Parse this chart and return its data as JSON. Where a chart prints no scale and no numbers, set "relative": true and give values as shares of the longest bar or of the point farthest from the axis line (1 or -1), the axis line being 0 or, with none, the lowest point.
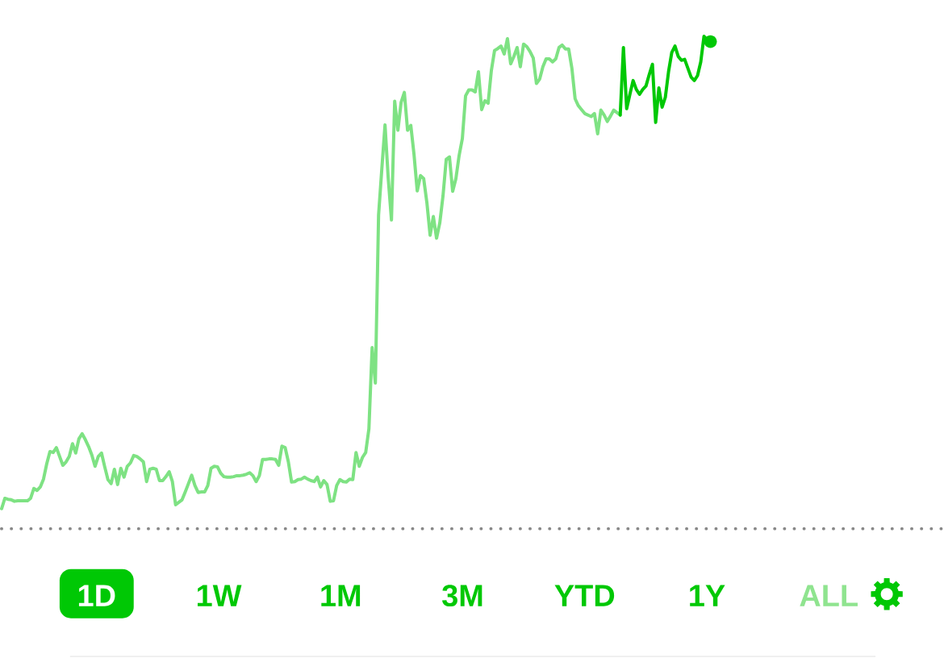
{
  "chart_data": {
    "type": "line",
    "relative": true,
    "categories": [
      null,
      null,
      null,
      null,
      null,
      null,
      null,
      null,
      null,
      null,
      null,
      null,
      null,
      null,
      null,
      null,
      null,
      null,
      null,
      null,
      null,
      null,
      null,
      null,
      null,
      null,
      null,
      null,
      null,
      null,
      null,
      null,
      null,
      null,
      null,
      null,
      null,
      null,
      null,
      null,
      null,
      null,
      null,
      null,
      null,
      null,
      null,
      null,
      null,
      null,
      null,
      null,
      null,
      null,
      null,
      null,
      null,
      null,
      null,
      null,
      null,
      null,
      null,
      null,
      null,
      null,
      null,
      null,
      null,
      null,
      null,
      null,
      null,
      null,
      null,
      null,
      null,
      null,
      null,
      null,
      null,
      null,
      null,
      null,
      null,
      null,
      null,
      null,
      null,
      null,
      null,
      null,
      null,
      null,
      null,
      null,
      null,
      null,
      null,
      null,
      null,
      null,
      null,
      null,
      null,
      null,
      null,
      null,
      null,
      null,
      null,
      null,
      null,
      null,
      null,
      null,
      null,
      null,
      null,
      null,
      null,
      null,
      null,
      null,
      null,
      null,
      null,
      null,
      null,
      null,
      null,
      null,
      null,
      null,
      null,
      null,
      null,
      null,
      null,
      null,
      null,
      null,
      null,
      null,
      null,
      null,
      null,
      null,
      null,
      null,
      null,
      null,
      null,
      null,
      null,
      null,
      null,
      null,
      null,
      null,
      null,
      null,
      null,
      null,
      null,
      null,
      null,
      null,
      null,
      null,
      null,
      null,
      null,
      null,
      null,
      null,
      null,
      null,
      null,
      null,
      null,
      null,
      null,
      null,
      null,
      null,
      null,
      null,
      null,
      null,
      null,
      null,
      null,
      null,
      null,
      null,
      null,
      null,
      null,
      null,
      null,
      null,
      null,
      null,
      null,
      null,
      null,
      null,
      null,
      null,
      null,
      null,
      null,
      null,
      null,
      null,
      null,
      null,
      null,
      null,
      null
    ],
    "series": [
      {
        "color": "#7ee283",
        "values": [
          0.041,
          0.062,
          0.06,
          0.059,
          0.056,
          0.057,
          0.057,
          0.057,
          0.057,
          0.062,
          0.082,
          0.078,
          0.085,
          0.101,
          0.132,
          0.157,
          0.155,
          0.165,
          0.147,
          0.129,
          0.136,
          0.147,
          0.173,
          0.154,
          0.183,
          0.193,
          0.181,
          0.167,
          0.15,
          0.127,
          0.147,
          0.154,
          0.126,
          0.1,
          0.092,
          0.121,
          0.09,
          0.123,
          0.105,
          0.127,
          0.134,
          0.149,
          0.147,
          0.142,
          0.136,
          0.096,
          0.121,
          0.123,
          0.121,
          0.098,
          0.098,
          0.106,
          0.116,
          0.096,
          0.049,
          0.054,
          0.059,
          0.075,
          0.092,
          0.109,
          0.088,
          0.074,
          0.075,
          0.075,
          0.088,
          0.123,
          0.127,
          0.126,
          0.113,
          0.106,
          0.105,
          0.105,
          0.106,
          0.108,
          0.108,
          0.109,
          0.111,
          0.114,
          0.108,
          0.096,
          0.108,
          0.141,
          0.141,
          0.142,
          0.142,
          0.141,
          0.129,
          0.168,
          0.165,
          0.136,
          0.095,
          0.096,
          0.1,
          0.101,
          0.105,
          0.101,
          0.098,
          0.096,
          0.105,
          0.085,
          0.098,
          0.09,
          0.056,
          0.057,
          0.088,
          0.1,
          0.096,
          0.095,
          0.101,
          0.1,
          0.155,
          0.127,
          0.145,
          0.155,
          0.203,
          0.368,
          0.296,
          0.637,
          0.73,
          0.82,
          0.711,
          0.627,
          0.868,
          0.809,
          0.866,
          0.886,
          0.809,
          0.819,
          0.76,
          0.686,
          0.717,
          0.711,
          0.662,
          0.596,
          0.634,
          0.59,
          0.621,
          0.676,
          0.75,
          0.755,
          0.685,
          0.711,
          0.758,
          0.792,
          0.879,
          0.891,
          0.891,
          0.887,
          0.928,
          0.851,
          0.869,
          0.864,
          0.93,
          0.971,
          0.975,
          0.98,
          0.964,
          0.995,
          0.944,
          0.959,
          0.977,
          0.938,
          0.984,
          0.979,
          0.969,
          0.956,
          0.904,
          0.913,
          0.938,
          0.954,
          0.954,
          0.948,
          0.954,
          0.977,
          0.982,
          0.974,
          0.974,
          0.935,
          0.873,
          0.859,
          0.851,
          0.843,
          0.84,
          0.837,
          0.843,
          0.802,
          0.85,
          0.84,
          0.827,
          0.838,
          0.85,
          0.845,
          0.84,
          null,
          null,
          null,
          null,
          null,
          null,
          null,
          null,
          null,
          null,
          null,
          null,
          null,
          null,
          null,
          null,
          null,
          null,
          null,
          null,
          null,
          null,
          null,
          null,
          null,
          null,
          null,
          null
        ]
      },
      {
        "color": "#00c805",
        "values": [
          null,
          null,
          null,
          null,
          null,
          null,
          null,
          null,
          null,
          null,
          null,
          null,
          null,
          null,
          null,
          null,
          null,
          null,
          null,
          null,
          null,
          null,
          null,
          null,
          null,
          null,
          null,
          null,
          null,
          null,
          null,
          null,
          null,
          null,
          null,
          null,
          null,
          null,
          null,
          null,
          null,
          null,
          null,
          null,
          null,
          null,
          null,
          null,
          null,
          null,
          null,
          null,
          null,
          null,
          null,
          null,
          null,
          null,
          null,
          null,
          null,
          null,
          null,
          null,
          null,
          null,
          null,
          null,
          null,
          null,
          null,
          null,
          null,
          null,
          null,
          null,
          null,
          null,
          null,
          null,
          null,
          null,
          null,
          null,
          null,
          null,
          null,
          null,
          null,
          null,
          null,
          null,
          null,
          null,
          null,
          null,
          null,
          null,
          null,
          null,
          null,
          null,
          null,
          null,
          null,
          null,
          null,
          null,
          null,
          null,
          null,
          null,
          null,
          null,
          null,
          null,
          null,
          null,
          null,
          null,
          null,
          null,
          null,
          null,
          null,
          null,
          null,
          null,
          null,
          null,
          null,
          null,
          null,
          null,
          null,
          null,
          null,
          null,
          null,
          null,
          null,
          null,
          null,
          null,
          null,
          null,
          null,
          null,
          null,
          null,
          null,
          null,
          null,
          null,
          null,
          null,
          null,
          null,
          null,
          null,
          null,
          null,
          null,
          null,
          null,
          null,
          null,
          null,
          null,
          null,
          null,
          null,
          null,
          null,
          null,
          null,
          null,
          null,
          null,
          null,
          null,
          null,
          null,
          null,
          null,
          null,
          null,
          null,
          null,
          null,
          null,
          null,
          0.84,
          0.977,
          0.853,
          0.882,
          0.91,
          0.892,
          0.882,
          0.892,
          0.899,
          0.922,
          0.943,
          0.825,
          0.895,
          0.856,
          0.876,
          0.928,
          0.967,
          0.98,
          0.959,
          0.951,
          0.953,
          0.935,
          0.917,
          0.91,
          0.92,
          0.948,
          1,
          0.992,
          0.989
        ]
      }
    ],
    "annotations": [
      "1D",
      "1W",
      "1M",
      "3M",
      "YTD",
      "1Y",
      "ALL"
    ]
  }
}
